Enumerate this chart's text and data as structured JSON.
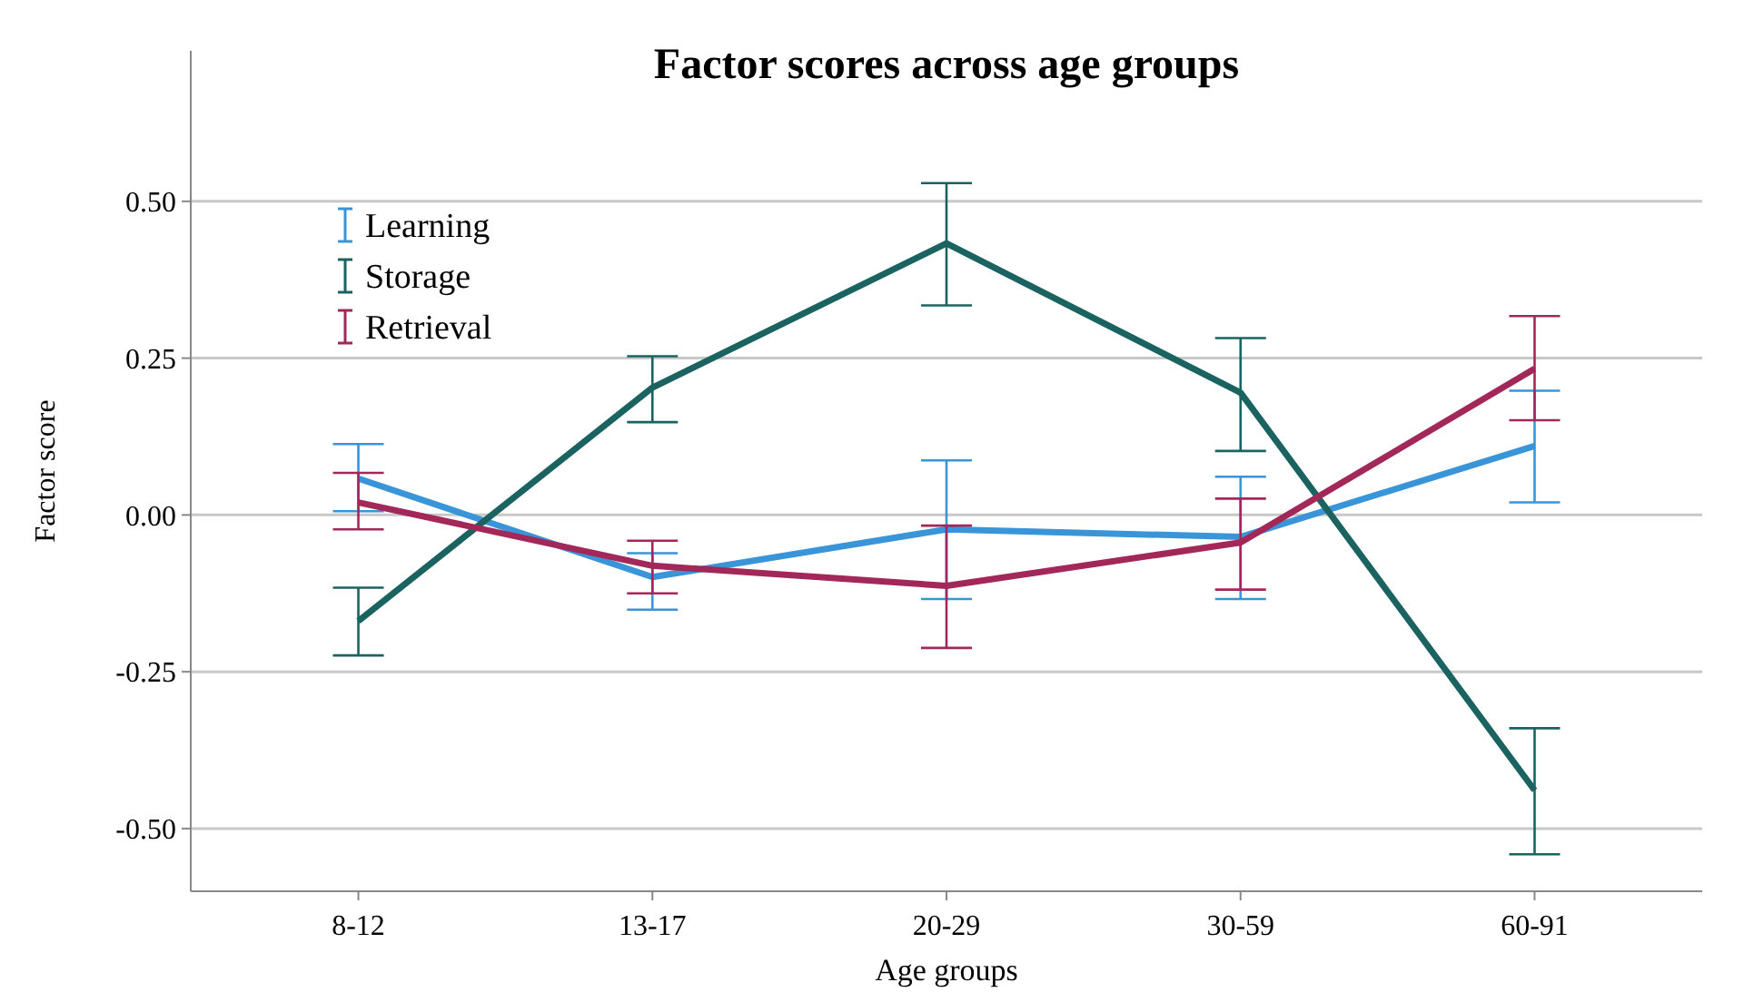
{
  "chart_data": {
    "type": "line",
    "title": "Factor scores across age groups",
    "xlabel": "Age groups",
    "ylabel": "Factor score",
    "categories": [
      "8-12",
      "13-17",
      "20-29",
      "30-59",
      "60-91"
    ],
    "series": [
      {
        "name": "Learning",
        "color": "#3a94d8",
        "values": [
          0.058,
          -0.099,
          -0.023,
          -0.035,
          0.11
        ],
        "errors": [
          [
            0.006,
            0.113
          ],
          [
            -0.151,
            -0.061
          ],
          [
            -0.134,
            0.087
          ],
          [
            -0.134,
            0.061
          ],
          [
            0.02,
            0.198
          ]
        ]
      },
      {
        "name": "Storage",
        "color": "#1a6360",
        "values": [
          -0.169,
          0.203,
          0.433,
          0.195,
          -0.439
        ],
        "errors": [
          [
            -0.224,
            -0.116
          ],
          [
            0.148,
            0.253
          ],
          [
            0.334,
            0.529
          ],
          [
            0.102,
            0.282
          ],
          [
            -0.541,
            -0.34
          ]
        ]
      },
      {
        "name": "Retrieval",
        "color": "#a3285a",
        "values": [
          0.02,
          -0.081,
          -0.113,
          -0.044,
          0.233
        ],
        "errors": [
          [
            -0.023,
            0.067
          ],
          [
            -0.125,
            -0.041
          ],
          [
            -0.212,
            -0.017
          ],
          [
            -0.119,
            0.026
          ],
          [
            0.151,
            0.317
          ]
        ]
      }
    ],
    "ylim": [
      -0.6,
      0.74
    ],
    "yticks": [
      {
        "value": 0.5,
        "label": "0.50"
      },
      {
        "value": 0.25,
        "label": "0.25"
      },
      {
        "value": 0,
        "label": "0.00"
      },
      {
        "value": -0.25,
        "label": "-0.25"
      },
      {
        "value": -0.5,
        "label": "-0.50"
      }
    ],
    "grid": "y",
    "legend": "top left",
    "marker": "none",
    "line_style": "solid"
  }
}
